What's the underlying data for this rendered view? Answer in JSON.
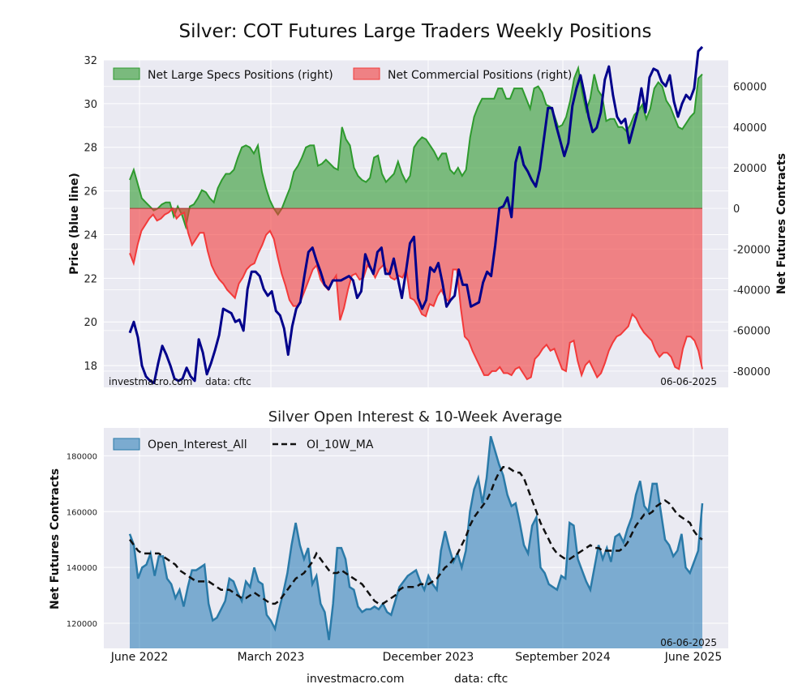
{
  "chart_data": [
    {
      "type": "area",
      "title": "Silver: COT Futures Large Traders Weekly Positions",
      "ylabel_left": "Price (blue line)",
      "ylabel_right": "Net Futures Contracts",
      "left_axis": {
        "min": 17,
        "max": 32,
        "ticks": [
          18,
          20,
          22,
          24,
          26,
          28,
          30,
          32
        ]
      },
      "right_axis": {
        "min": -88000,
        "max": 73000,
        "ticks": [
          60000,
          40000,
          20000,
          0,
          -20000,
          -40000,
          -60000,
          -80000
        ]
      },
      "legend": [
        "Net Large Specs Positions (right)",
        "Net Commercial Positions (right)"
      ],
      "watermark_left": "investmacro.com",
      "watermark_data": "data: cftc",
      "date_label": "06-06-2025",
      "series": [
        {
          "name": "Net Large Specs Positions (right)",
          "axis": "right",
          "color": "#2e8b2e",
          "values": [
            14000,
            19000,
            12000,
            5000,
            3000,
            1000,
            -1000,
            0,
            2000,
            3000,
            3000,
            -4000,
            1000,
            -3000,
            -9000,
            1000,
            2000,
            5000,
            9000,
            8000,
            5000,
            3000,
            10000,
            14000,
            17000,
            17000,
            19000,
            25000,
            30000,
            31000,
            30000,
            27000,
            31000,
            18000,
            10000,
            4000,
            0,
            -3000,
            0,
            5000,
            10000,
            18000,
            21000,
            25000,
            30000,
            31000,
            31000,
            21000,
            22000,
            24000,
            22000,
            20000,
            19000,
            40000,
            34000,
            31000,
            20000,
            16000,
            14000,
            13000,
            15000,
            25000,
            26000,
            17000,
            13000,
            15000,
            17000,
            23000,
            17000,
            13000,
            16000,
            30000,
            33000,
            35000,
            34000,
            31000,
            28000,
            24000,
            27000,
            27000,
            19000,
            17000,
            20000,
            16000,
            19000,
            35000,
            45000,
            50000,
            54000,
            54000,
            54000,
            54000,
            59000,
            59000,
            54000,
            54000,
            59000,
            59000,
            59000,
            54000,
            49000,
            59000,
            60000,
            57000,
            51000,
            50000,
            46000,
            40000,
            41000,
            45000,
            53000,
            64000,
            69000,
            57000,
            48000,
            54000,
            66000,
            58000,
            55000,
            43000,
            44000,
            44000,
            40000,
            40000,
            38000,
            41000,
            46000,
            48000,
            51000,
            44000,
            49000,
            59000,
            62000,
            60000,
            53000,
            50000,
            45000,
            40000,
            39000,
            42000,
            45000,
            47000,
            64000,
            66000
          ]
        },
        {
          "name": "Net Commercial Positions (right)",
          "axis": "right",
          "color": "#e8434a",
          "values": [
            -22000,
            -27000,
            -18000,
            -11000,
            -8000,
            -5000,
            -3000,
            -6000,
            -5000,
            -3000,
            -2000,
            0,
            -5000,
            -3000,
            -2000,
            -12000,
            -18000,
            -15000,
            -12000,
            -12000,
            -21000,
            -28000,
            -32000,
            -35000,
            -37000,
            -40000,
            -42000,
            -44000,
            -37000,
            -34000,
            -30000,
            -28000,
            -27000,
            -22000,
            -18000,
            -13000,
            -11000,
            -15000,
            -24000,
            -32000,
            -38000,
            -45000,
            -48000,
            -48000,
            -45000,
            -40000,
            -35000,
            -30000,
            -28000,
            -35000,
            -38000,
            -40000,
            -36000,
            -33000,
            -55000,
            -49000,
            -40000,
            -33000,
            -32000,
            -35000,
            -34000,
            -28000,
            -30000,
            -34000,
            -30000,
            -28000,
            -30000,
            -34000,
            -35000,
            -33000,
            -34000,
            -30000,
            -44000,
            -45000,
            -48000,
            -52000,
            -53000,
            -47000,
            -48000,
            -43000,
            -40000,
            -44000,
            -46000,
            -30000,
            -30000,
            -49000,
            -63000,
            -65000,
            -70000,
            -74000,
            -78000,
            -82000,
            -82000,
            -80000,
            -80000,
            -78000,
            -81000,
            -81000,
            -82000,
            -79000,
            -78000,
            -81000,
            -84000,
            -83000,
            -74000,
            -72000,
            -69000,
            -67000,
            -70000,
            -69000,
            -74000,
            -79000,
            -80000,
            -66000,
            -65000,
            -75000,
            -82000,
            -77000,
            -75000,
            -79000,
            -83000,
            -81000,
            -76000,
            -70000,
            -66000,
            -63000,
            -62000,
            -60000,
            -58000,
            -52000,
            -54000,
            -58000,
            -61000,
            -63000,
            -65000,
            -70000,
            -73000,
            -71000,
            -71000,
            -73000,
            -78000,
            -79000,
            -69000,
            -63000,
            -63000,
            -65000,
            -70000,
            -79000
          ]
        },
        {
          "name": "Price (blue line)",
          "axis": "left",
          "color": "#00008b",
          "values": [
            19.5,
            20.0,
            19.3,
            18.0,
            17.5,
            17.3,
            17.2,
            18.1,
            18.9,
            18.5,
            18.0,
            17.4,
            17.3,
            17.4,
            17.9,
            17.5,
            17.3,
            19.2,
            18.6,
            17.6,
            18.1,
            18.7,
            19.4,
            20.6,
            20.5,
            20.4,
            20.0,
            20.1,
            19.6,
            21.5,
            22.3,
            22.3,
            22.1,
            21.5,
            21.2,
            21.4,
            20.5,
            20.3,
            19.7,
            18.5,
            19.8,
            20.6,
            20.9,
            22.1,
            23.2,
            23.4,
            22.8,
            22.3,
            21.7,
            21.5,
            21.9,
            21.9,
            21.9,
            22.0,
            22.1,
            21.9,
            21.1,
            21.4,
            23.1,
            22.6,
            22.2,
            23.2,
            23.4,
            22.2,
            22.2,
            22.9,
            22.0,
            21.1,
            22.3,
            23.6,
            23.9,
            21.1,
            20.6,
            21.0,
            22.5,
            22.3,
            22.7,
            21.8,
            20.7,
            21.0,
            21.2,
            22.4,
            21.7,
            21.7,
            20.7,
            20.8,
            20.9,
            21.8,
            22.3,
            22.1,
            23.5,
            25.2,
            25.3,
            25.7,
            24.8,
            27.3,
            28.0,
            27.2,
            26.9,
            26.5,
            26.2,
            27.0,
            28.4,
            29.8,
            29.8,
            29.0,
            28.3,
            27.6,
            28.2,
            29.9,
            30.7,
            31.3,
            30.4,
            29.4,
            28.7,
            28.9,
            29.6,
            31.1,
            31.7,
            30.4,
            29.4,
            29.1,
            29.3,
            28.2,
            28.9,
            29.6,
            30.7,
            29.6,
            31.2,
            31.6,
            31.5,
            31.0,
            30.8,
            31.3,
            30.1,
            29.4,
            30.0,
            30.4,
            30.2,
            30.7,
            32.4,
            32.6
          ]
        }
      ]
    },
    {
      "type": "area",
      "title": "Silver Open Interest & 10-Week Average",
      "ylabel": "Net Futures Contracts",
      "y_axis": {
        "min": 111000,
        "max": 190000,
        "ticks": [
          120000,
          140000,
          160000,
          180000
        ]
      },
      "x_tick_labels": [
        "June 2022",
        "March 2023",
        "December 2023",
        "September 2024",
        "June 2025"
      ],
      "legend": [
        "Open_Interest_All",
        "OI_10W_MA"
      ],
      "date_label": "06-06-2025",
      "series": [
        {
          "name": "Open_Interest_All",
          "color": "#1f77b4",
          "values": [
            152000,
            148000,
            136000,
            140000,
            141000,
            145000,
            137000,
            144000,
            144000,
            136000,
            134000,
            129000,
            132000,
            126000,
            133000,
            139000,
            139000,
            140000,
            141000,
            127000,
            121000,
            122000,
            125000,
            128000,
            136000,
            135000,
            131000,
            128000,
            135000,
            133000,
            140000,
            135000,
            134000,
            123000,
            121000,
            118000,
            125000,
            131000,
            138000,
            148000,
            156000,
            148000,
            143000,
            147000,
            134000,
            137000,
            127000,
            124000,
            114000,
            127000,
            147000,
            147000,
            143000,
            133000,
            132000,
            126000,
            124000,
            125000,
            125000,
            126000,
            125000,
            127000,
            124000,
            123000,
            128000,
            133000,
            135000,
            137000,
            138000,
            139000,
            135000,
            132000,
            137000,
            134000,
            132000,
            146000,
            153000,
            147000,
            142000,
            145000,
            140000,
            146000,
            160000,
            168000,
            172000,
            163000,
            172000,
            187000,
            182000,
            177000,
            173000,
            166000,
            162000,
            163000,
            156000,
            148000,
            145000,
            155000,
            158000,
            140000,
            138000,
            134000,
            133000,
            132000,
            137000,
            136000,
            156000,
            155000,
            143000,
            139000,
            135000,
            132000,
            140000,
            148000,
            143000,
            147000,
            142000,
            151000,
            152000,
            149000,
            154000,
            158000,
            166000,
            171000,
            162000,
            160000,
            170000,
            170000,
            160000,
            150000,
            148000,
            144000,
            146000,
            152000,
            140000,
            138000,
            142000,
            146000,
            163000
          ]
        },
        {
          "name": "OI_10W_MA",
          "color": "#111111",
          "dashed": true,
          "values": [
            150000,
            148000,
            146000,
            145000,
            145000,
            145000,
            145000,
            145000,
            144000,
            143000,
            142000,
            141000,
            139000,
            138000,
            137000,
            136000,
            135000,
            135000,
            135000,
            135000,
            134000,
            133000,
            132000,
            132000,
            132000,
            131000,
            130000,
            129000,
            129000,
            130000,
            131000,
            130000,
            129000,
            128000,
            127000,
            127000,
            128000,
            130000,
            132000,
            134000,
            136000,
            137000,
            138000,
            140000,
            142000,
            145000,
            143000,
            141000,
            139000,
            138000,
            138000,
            139000,
            138000,
            137000,
            136000,
            135000,
            134000,
            132000,
            130000,
            128000,
            127000,
            127000,
            128000,
            129000,
            130000,
            132000,
            133000,
            133000,
            133000,
            133000,
            134000,
            134000,
            134000,
            135000,
            136000,
            138000,
            140000,
            141000,
            143000,
            145000,
            148000,
            151000,
            155000,
            158000,
            160000,
            162000,
            164000,
            167000,
            171000,
            174000,
            176000,
            176000,
            175000,
            174000,
            174000,
            172000,
            168000,
            164000,
            160000,
            156000,
            153000,
            150000,
            147000,
            145000,
            144000,
            143000,
            143000,
            144000,
            145000,
            146000,
            147000,
            148000,
            147000,
            147000,
            146000,
            146000,
            146000,
            146000,
            146000,
            147000,
            149000,
            152000,
            155000,
            157000,
            159000,
            159000,
            160000,
            162000,
            163000,
            164000,
            163000,
            161000,
            159000,
            158000,
            157000,
            156000,
            153000,
            151000,
            150000
          ]
        }
      ]
    }
  ],
  "footer": {
    "site": "investmacro.com",
    "source": "data: cftc"
  }
}
